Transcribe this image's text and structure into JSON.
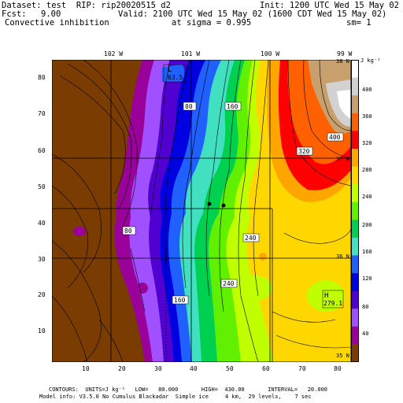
{
  "header": {
    "dataset_line": "Dataset: test  RIP: rip20020515 d2",
    "init_line": "Init: 1200 UTC Wed 15 May 02",
    "fcst_label": "Fcst:",
    "fcst_value": "9.00",
    "valid_line": "Valid: 2100 UTC Wed 15 May 02 (1600 CDT Wed 15 May 02)",
    "field_name": "Convective inhibition",
    "sigma_line": "at sigma = 0.995",
    "sm_line": "sm= 1"
  },
  "map": {
    "lon_labels": [
      "102 W",
      "101 W",
      "100 W",
      "99 W"
    ],
    "lat_labels": [
      "38 N",
      "37 N",
      "36 N",
      "35 N"
    ],
    "y_ticks": [
      "80",
      "70",
      "60",
      "50",
      "40",
      "30",
      "20",
      "10"
    ],
    "x_ticks": [
      "10",
      "20",
      "30",
      "40",
      "50",
      "60",
      "70",
      "80"
    ],
    "contour_labels": [
      "80",
      "160",
      "320",
      "400",
      "80",
      "240",
      "240",
      "160"
    ],
    "low_marker": {
      "letter": "L",
      "value": "63.5"
    },
    "high_marker": {
      "letter": "H",
      "value": "279.1"
    }
  },
  "colorbar": {
    "unit": "J kg⁻¹",
    "labels": [
      "400",
      "360",
      "320",
      "280",
      "240",
      "200",
      "160",
      "120",
      "80",
      "40"
    ],
    "colors": [
      "#ffffff",
      "#d2d2d2",
      "#c8a06e",
      "#ff6000",
      "#ff0000",
      "#ffa500",
      "#ffd700",
      "#bfff00",
      "#60f000",
      "#00d050",
      "#40e0c0",
      "#2060ff",
      "#0000e0",
      "#5000d0",
      "#a050ff",
      "#9a009a",
      "#7a3c00"
    ]
  },
  "footer": {
    "contours_line": "CONTOURS:  UNITS=J kg⁻¹   LOW=   80.000       HIGH=  430.00       INTERVAL=   20.000",
    "model_line": "Model info: V3.5.0 No Cumulus Blackadar  Simple ice     4 km,  29 levels,    7 sec"
  }
}
